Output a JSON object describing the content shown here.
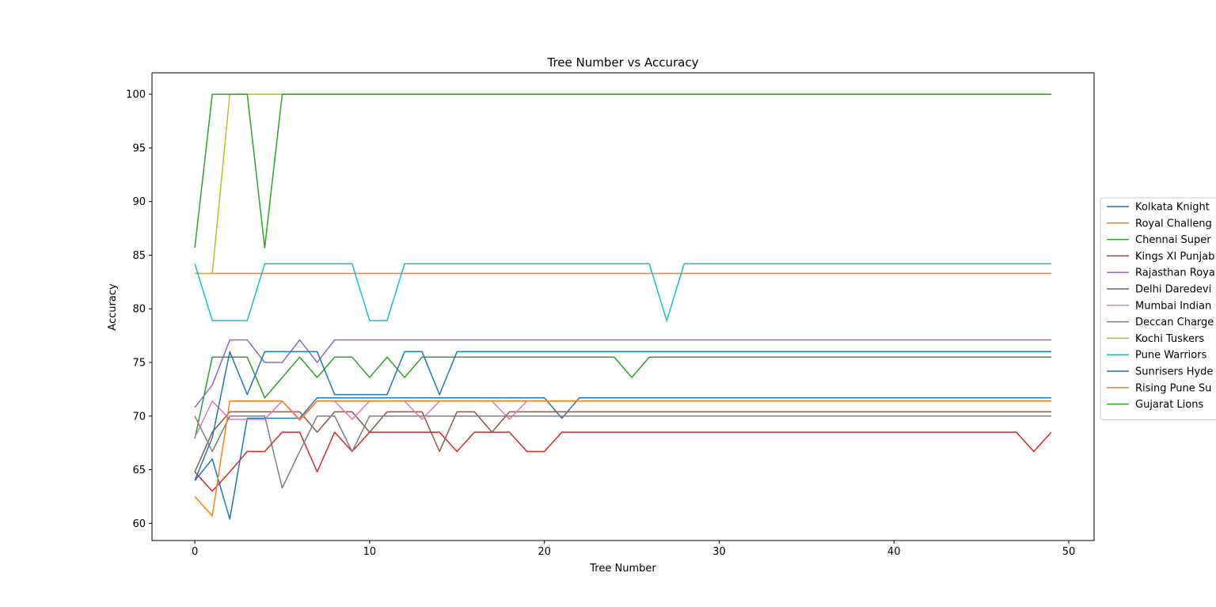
{
  "chart_data": {
    "type": "line",
    "title": "Tree Number vs Accuracy",
    "xlabel": "Tree Number",
    "ylabel": "Accuracy",
    "xlim": [
      -2.45,
      51.45
    ],
    "ylim": [
      58.4,
      102.0
    ],
    "xticks": [
      0,
      10,
      20,
      30,
      40,
      50
    ],
    "yticks": [
      60,
      65,
      70,
      75,
      80,
      85,
      90,
      95,
      100
    ],
    "grid": false,
    "legend_position": "outside right, clipped",
    "x": [
      0,
      1,
      2,
      3,
      4,
      5,
      6,
      7,
      8,
      9,
      10,
      11,
      12,
      13,
      14,
      15,
      16,
      17,
      18,
      19,
      20,
      21,
      22,
      23,
      24,
      25,
      26,
      27,
      28,
      29,
      30,
      31,
      32,
      33,
      34,
      35,
      36,
      37,
      38,
      39,
      40,
      41,
      42,
      43,
      44,
      45,
      46,
      47,
      48,
      49
    ],
    "series": [
      {
        "name": "Kolkata Knight",
        "color": "#1f77b4",
        "values": [
          64.0,
          66.0,
          60.4,
          69.8,
          69.8,
          69.8,
          69.8,
          71.7,
          71.7,
          71.7,
          71.7,
          71.7,
          71.7,
          71.7,
          71.7,
          71.7,
          71.7,
          71.7,
          71.7,
          71.7,
          71.7,
          69.8,
          71.7,
          71.7,
          71.7,
          71.7,
          71.7,
          71.7,
          71.7,
          71.7,
          71.7,
          71.7,
          71.7,
          71.7,
          71.7,
          71.7,
          71.7,
          71.7,
          71.7,
          71.7,
          71.7,
          71.7,
          71.7,
          71.7,
          71.7,
          71.7,
          71.7,
          71.7,
          71.7,
          71.7
        ]
      },
      {
        "name": "Royal Challeng",
        "color": "#ff7f0e",
        "values": [
          83.3,
          83.3,
          83.3,
          83.3,
          83.3,
          83.3,
          83.3,
          83.3,
          83.3,
          83.3,
          83.3,
          83.3,
          83.3,
          83.3,
          83.3,
          83.3,
          83.3,
          83.3,
          83.3,
          83.3,
          83.3,
          83.3,
          83.3,
          83.3,
          83.3,
          83.3,
          83.3,
          83.3,
          83.3,
          83.3,
          83.3,
          83.3,
          83.3,
          83.3,
          83.3,
          83.3,
          83.3,
          83.3,
          83.3,
          83.3,
          83.3,
          83.3,
          83.3,
          83.3,
          83.3,
          83.3,
          83.3,
          83.3,
          83.3,
          83.3
        ]
      },
      {
        "name": "Chennai Super",
        "color": "#2ca02c",
        "values": [
          67.9,
          75.5,
          75.5,
          75.5,
          71.7,
          73.6,
          75.5,
          73.6,
          75.5,
          75.5,
          73.6,
          75.5,
          73.6,
          75.5,
          75.5,
          75.5,
          75.5,
          75.5,
          75.5,
          75.5,
          75.5,
          75.5,
          75.5,
          75.5,
          75.5,
          73.6,
          75.5,
          75.5,
          75.5,
          75.5,
          75.5,
          75.5,
          75.5,
          75.5,
          75.5,
          75.5,
          75.5,
          75.5,
          75.5,
          75.5,
          75.5,
          75.5,
          75.5,
          75.5,
          75.5,
          75.5,
          75.5,
          75.5,
          75.5,
          75.5
        ]
      },
      {
        "name": "Kings XI Punjab",
        "color": "#d62728",
        "values": [
          64.8,
          63.0,
          64.8,
          66.7,
          66.7,
          68.5,
          68.5,
          64.8,
          68.5,
          66.7,
          68.5,
          68.5,
          68.5,
          68.5,
          68.5,
          66.7,
          68.5,
          68.5,
          68.5,
          66.7,
          66.7,
          68.5,
          68.5,
          68.5,
          68.5,
          68.5,
          68.5,
          68.5,
          68.5,
          68.5,
          68.5,
          68.5,
          68.5,
          68.5,
          68.5,
          68.5,
          68.5,
          68.5,
          68.5,
          68.5,
          68.5,
          68.5,
          68.5,
          68.5,
          68.5,
          68.5,
          68.5,
          68.5,
          66.7,
          68.5
        ]
      },
      {
        "name": "Rajasthan Roya",
        "color": "#9467bd",
        "values": [
          70.8,
          72.9,
          77.1,
          77.1,
          75.0,
          75.0,
          77.1,
          75.0,
          77.1,
          77.1,
          77.1,
          77.1,
          77.1,
          77.1,
          77.1,
          77.1,
          77.1,
          77.1,
          77.1,
          77.1,
          77.1,
          77.1,
          77.1,
          77.1,
          77.1,
          77.1,
          77.1,
          77.1,
          77.1,
          77.1,
          77.1,
          77.1,
          77.1,
          77.1,
          77.1,
          77.1,
          77.1,
          77.1,
          77.1,
          77.1,
          77.1,
          77.1,
          77.1,
          77.1,
          77.1,
          77.1,
          77.1,
          77.1,
          77.1,
          77.1
        ]
      },
      {
        "name": "Delhi Daredevi",
        "color": "#8c564b",
        "values": [
          64.8,
          68.5,
          70.4,
          70.4,
          70.4,
          70.4,
          70.4,
          68.5,
          70.4,
          70.4,
          68.5,
          70.4,
          70.4,
          70.4,
          66.7,
          70.4,
          70.4,
          68.5,
          70.4,
          70.4,
          70.4,
          70.4,
          70.4,
          70.4,
          70.4,
          70.4,
          70.4,
          70.4,
          70.4,
          70.4,
          70.4,
          70.4,
          70.4,
          70.4,
          70.4,
          70.4,
          70.4,
          70.4,
          70.4,
          70.4,
          70.4,
          70.4,
          70.4,
          70.4,
          70.4,
          70.4,
          70.4,
          70.4,
          70.4,
          70.4
        ]
      },
      {
        "name": "Mumbai Indian",
        "color": "#e377c2",
        "values": [
          68.0,
          71.4,
          69.7,
          69.7,
          69.7,
          71.4,
          69.7,
          71.4,
          71.4,
          69.7,
          71.4,
          71.4,
          71.4,
          69.7,
          71.4,
          71.4,
          71.4,
          71.4,
          69.7,
          71.4,
          71.4,
          71.4,
          71.4,
          71.4,
          71.4,
          71.4,
          71.4,
          71.4,
          71.4,
          71.4,
          71.4,
          71.4,
          71.4,
          71.4,
          71.4,
          71.4,
          71.4,
          71.4,
          71.4,
          71.4,
          71.4,
          71.4,
          71.4,
          71.4,
          71.4,
          71.4,
          71.4,
          71.4,
          71.4,
          71.4
        ]
      },
      {
        "name": "Deccan Charge",
        "color": "#7f7f7f",
        "values": [
          70.0,
          66.7,
          70.0,
          70.0,
          70.0,
          63.3,
          66.7,
          70.0,
          70.0,
          66.7,
          70.0,
          70.0,
          70.0,
          70.0,
          70.0,
          70.0,
          70.0,
          70.0,
          70.0,
          70.0,
          70.0,
          70.0,
          70.0,
          70.0,
          70.0,
          70.0,
          70.0,
          70.0,
          70.0,
          70.0,
          70.0,
          70.0,
          70.0,
          70.0,
          70.0,
          70.0,
          70.0,
          70.0,
          70.0,
          70.0,
          70.0,
          70.0,
          70.0,
          70.0,
          70.0,
          70.0,
          70.0,
          70.0,
          70.0,
          70.0
        ]
      },
      {
        "name": "Kochi Tuskers",
        "color": "#bcbd22",
        "values": [
          83.3,
          83.3,
          100,
          100,
          100,
          100,
          100,
          100,
          100,
          100,
          100,
          100,
          100,
          100,
          100,
          100,
          100,
          100,
          100,
          100,
          100,
          100,
          100,
          100,
          100,
          100,
          100,
          100,
          100,
          100,
          100,
          100,
          100,
          100,
          100,
          100,
          100,
          100,
          100,
          100,
          100,
          100,
          100,
          100,
          100,
          100,
          100,
          100,
          100,
          100
        ]
      },
      {
        "name": "Pune Warriors",
        "color": "#17becf",
        "values": [
          84.2,
          78.9,
          78.9,
          78.9,
          84.2,
          84.2,
          84.2,
          84.2,
          84.2,
          84.2,
          78.9,
          78.9,
          84.2,
          84.2,
          84.2,
          84.2,
          84.2,
          84.2,
          84.2,
          84.2,
          84.2,
          84.2,
          84.2,
          84.2,
          84.2,
          84.2,
          84.2,
          78.9,
          84.2,
          84.2,
          84.2,
          84.2,
          84.2,
          84.2,
          84.2,
          84.2,
          84.2,
          84.2,
          84.2,
          84.2,
          84.2,
          84.2,
          84.2,
          84.2,
          84.2,
          84.2,
          84.2,
          84.2,
          84.2,
          84.2
        ]
      },
      {
        "name": "Sunrisers Hyde",
        "color": "#1f77b4",
        "values": [
          64.0,
          68.0,
          76.0,
          72.0,
          76.0,
          76.0,
          76.0,
          76.0,
          72.0,
          72.0,
          72.0,
          72.0,
          76.0,
          76.0,
          72.0,
          76.0,
          76.0,
          76.0,
          76.0,
          76.0,
          76.0,
          76.0,
          76.0,
          76.0,
          76.0,
          76.0,
          76.0,
          76.0,
          76.0,
          76.0,
          76.0,
          76.0,
          76.0,
          76.0,
          76.0,
          76.0,
          76.0,
          76.0,
          76.0,
          76.0,
          76.0,
          76.0,
          76.0,
          76.0,
          76.0,
          76.0,
          76.0,
          76.0,
          76.0,
          76.0
        ]
      },
      {
        "name": "Rising Pune Su",
        "color": "#ff7f0e",
        "values": [
          62.5,
          60.7,
          71.4,
          71.4,
          71.4,
          71.4,
          69.6,
          71.4,
          71.4,
          71.4,
          71.4,
          71.4,
          71.4,
          71.4,
          71.4,
          71.4,
          71.4,
          71.4,
          71.4,
          71.4,
          71.4,
          71.4,
          71.4,
          71.4,
          71.4,
          71.4,
          71.4,
          71.4,
          71.4,
          71.4,
          71.4,
          71.4,
          71.4,
          71.4,
          71.4,
          71.4,
          71.4,
          71.4,
          71.4,
          71.4,
          71.4,
          71.4,
          71.4,
          71.4,
          71.4,
          71.4,
          71.4,
          71.4,
          71.4,
          71.4
        ]
      },
      {
        "name": "Gujarat Lions",
        "color": "#2ca02c",
        "values": [
          85.7,
          100,
          100,
          100,
          85.7,
          100,
          100,
          100,
          100,
          100,
          100,
          100,
          100,
          100,
          100,
          100,
          100,
          100,
          100,
          100,
          100,
          100,
          100,
          100,
          100,
          100,
          100,
          100,
          100,
          100,
          100,
          100,
          100,
          100,
          100,
          100,
          100,
          100,
          100,
          100,
          100,
          100,
          100,
          100,
          100,
          100,
          100,
          100,
          100,
          100
        ]
      }
    ]
  }
}
